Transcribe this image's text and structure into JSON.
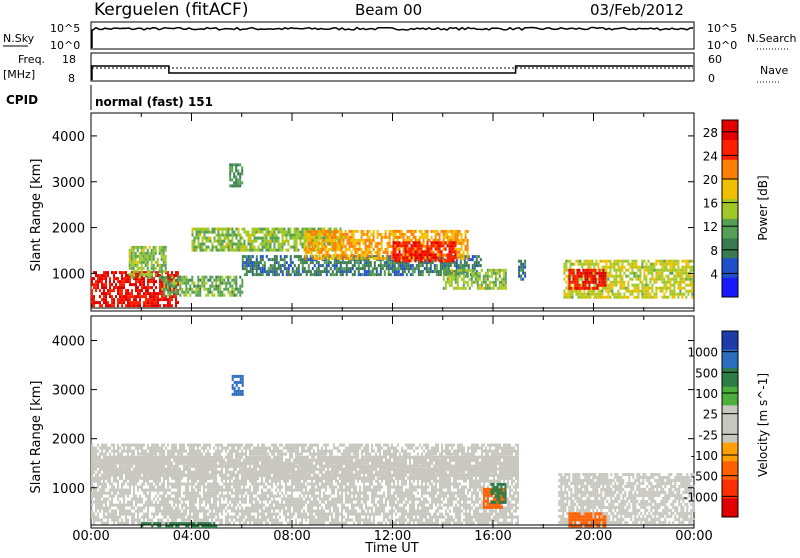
{
  "header": {
    "station": "Kerguelen (fitACF)",
    "beam": "Beam 00",
    "date": "03/Feb/2012"
  },
  "panels": {
    "nsky": {
      "left_label": "N.Sky",
      "left_ticks": [
        "10^5",
        "10^0"
      ],
      "right_label": "N.Search",
      "right_ticks": [
        "10^5",
        "10^0"
      ]
    },
    "freq": {
      "left_label_1": "Freq.",
      "left_label_2": "[MHz]",
      "left_ticks": [
        "18",
        "8"
      ],
      "right_label": "Nave",
      "right_ticks": [
        "60",
        "0"
      ]
    },
    "cpid": {
      "label": "CPID",
      "text": "normal (fast) 151"
    }
  },
  "x_axis": {
    "ticks": [
      "00:00",
      "04:00",
      "08:00",
      "12:00",
      "16:00",
      "20:00",
      "00:00"
    ],
    "label": "Time UT"
  },
  "colors": {
    "power": [
      "#1a1aff",
      "#2050c8",
      "#3a7a50",
      "#55a055",
      "#a0c828",
      "#f0c000",
      "#ff8000",
      "#ff2000",
      "#e00000"
    ],
    "velocity": [
      "#1e3ca8",
      "#2d6dbf",
      "#2e7d47",
      "#4caf3c",
      "#c8c8c0",
      "#c8c8c0",
      "#ffa000",
      "#ff6000",
      "#ff3000",
      "#e00000"
    ]
  },
  "chart_data": [
    {
      "type": "heatmap",
      "title": "Power",
      "xlabel": "Time UT",
      "ylabel": "Slant Range [km]",
      "xlim": [
        "00:00",
        "24:00"
      ],
      "ylim": [
        180,
        4500
      ],
      "y_ticks": [
        1000,
        2000,
        3000,
        4000
      ],
      "colorbar": {
        "label": "Power [dB]",
        "ticks": [
          4,
          8,
          12,
          16,
          20,
          24,
          28
        ],
        "range": [
          0,
          30
        ]
      },
      "regions": [
        {
          "t": [
            0.0,
            3.5
          ],
          "r": [
            300,
            1050
          ],
          "level": 27
        },
        {
          "t": [
            1.5,
            3.0
          ],
          "r": [
            900,
            1600
          ],
          "level": 14
        },
        {
          "t": [
            2.8,
            6.0
          ],
          "r": [
            500,
            950
          ],
          "level": 12
        },
        {
          "t": [
            4.0,
            10.0
          ],
          "r": [
            1500,
            2000
          ],
          "level": 14
        },
        {
          "t": [
            5.5,
            6.0
          ],
          "r": [
            2900,
            3400
          ],
          "level": 10
        },
        {
          "t": [
            6.0,
            15.5
          ],
          "r": [
            1000,
            1400
          ],
          "level": 8
        },
        {
          "t": [
            8.5,
            15.0
          ],
          "r": [
            1350,
            1950
          ],
          "level": 20
        },
        {
          "t": [
            12.0,
            14.5
          ],
          "r": [
            1250,
            1700
          ],
          "level": 26
        },
        {
          "t": [
            14.0,
            16.5
          ],
          "r": [
            700,
            1100
          ],
          "level": 14
        },
        {
          "t": [
            17.0,
            17.3
          ],
          "r": [
            900,
            1300
          ],
          "level": 8
        },
        {
          "t": [
            18.8,
            23.9
          ],
          "r": [
            500,
            1300
          ],
          "level": 16
        },
        {
          "t": [
            19.0,
            20.5
          ],
          "r": [
            700,
            1100
          ],
          "level": 27
        }
      ]
    },
    {
      "type": "heatmap",
      "title": "Velocity",
      "xlabel": "Time UT",
      "ylabel": "Slant Range [km]",
      "xlim": [
        "00:00",
        "24:00"
      ],
      "ylim": [
        180,
        4500
      ],
      "y_ticks": [
        1000,
        2000,
        3000,
        4000
      ],
      "colorbar": {
        "label": "Velocity [m s^-1]",
        "ticks": [
          "1000",
          "500",
          "100",
          "25",
          "-25",
          "-100",
          "-500",
          "-1000"
        ]
      },
      "regions": [
        {
          "t": [
            0.0,
            17.0
          ],
          "r": [
            250,
            1900
          ],
          "value": 0
        },
        {
          "t": [
            0.0,
            17.0
          ],
          "r": [
            1200,
            1650
          ],
          "value": 0
        },
        {
          "t": [
            18.6,
            24.0
          ],
          "r": [
            300,
            1300
          ],
          "value": 0
        },
        {
          "t": [
            15.6,
            16.4
          ],
          "r": [
            600,
            1000
          ],
          "value": -300
        },
        {
          "t": [
            15.9,
            16.5
          ],
          "r": [
            700,
            1100
          ],
          "value": 150
        },
        {
          "t": [
            19.0,
            20.5
          ],
          "r": [
            200,
            500
          ],
          "value": -200
        },
        {
          "t": [
            2.0,
            5.0
          ],
          "r": [
            200,
            300
          ],
          "value": 150
        },
        {
          "t": [
            5.6,
            6.0
          ],
          "r": [
            2900,
            3300
          ],
          "value": 600
        }
      ]
    }
  ]
}
